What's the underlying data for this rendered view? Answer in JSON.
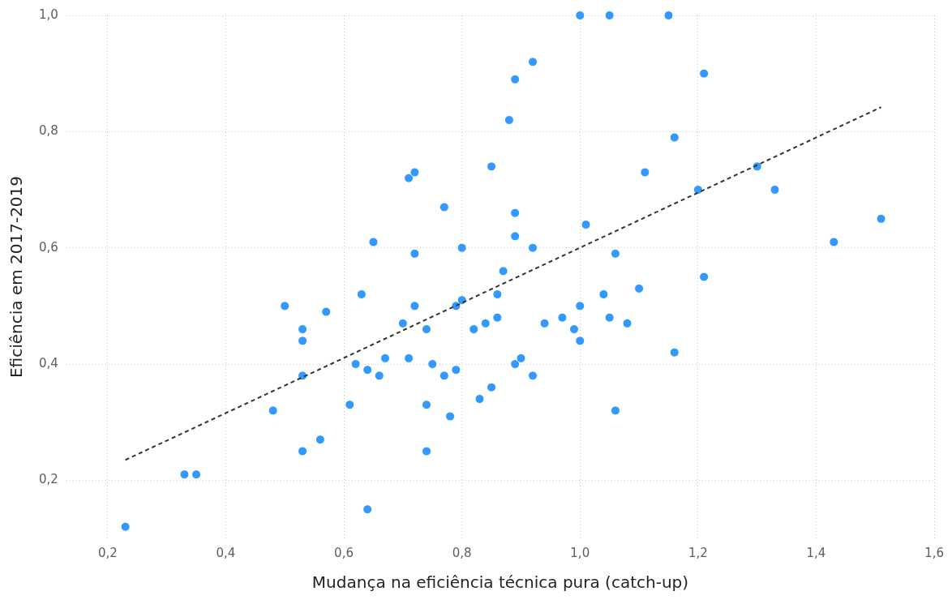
{
  "chart_data": {
    "type": "scatter",
    "xlabel": "Mudança na eficiência técnica pura (catch-up)",
    "ylabel": "Eficiência em 2017-2019",
    "xlim": [
      0.13,
      1.6
    ],
    "ylim": [
      0.1,
      1.0
    ],
    "xticks": [
      {
        "value": 0.2,
        "label": "0,2"
      },
      {
        "value": 0.4,
        "label": "0,4"
      },
      {
        "value": 0.6,
        "label": "0,6"
      },
      {
        "value": 0.8,
        "label": "0,8"
      },
      {
        "value": 1.0,
        "label": "1,0"
      },
      {
        "value": 1.2,
        "label": "1,2"
      },
      {
        "value": 1.4,
        "label": "1,4"
      },
      {
        "value": 1.6,
        "label": "1,6"
      }
    ],
    "yticks": [
      {
        "value": 0.2,
        "label": "0,2"
      },
      {
        "value": 0.4,
        "label": "0,4"
      },
      {
        "value": 0.6,
        "label": "0,6"
      },
      {
        "value": 0.8,
        "label": "0,8"
      },
      {
        "value": 1.0,
        "label": "1,0"
      }
    ],
    "grid": true,
    "legend": false,
    "marker": "circle",
    "series": [
      {
        "type": "scatter",
        "color": "#3399ff",
        "x": [
          0.23,
          0.33,
          0.35,
          0.48,
          0.5,
          0.53,
          0.53,
          0.53,
          0.53,
          0.56,
          0.57,
          0.61,
          0.62,
          0.63,
          0.65,
          0.64,
          0.64,
          0.66,
          0.67,
          0.7,
          0.71,
          0.71,
          0.72,
          0.72,
          0.72,
          0.74,
          0.74,
          0.74,
          0.75,
          0.77,
          0.77,
          0.78,
          0.79,
          0.79,
          0.8,
          0.8,
          0.82,
          0.83,
          0.84,
          0.85,
          0.85,
          0.86,
          0.86,
          0.87,
          0.88,
          0.89,
          0.89,
          0.89,
          0.89,
          0.9,
          0.92,
          0.92,
          0.92,
          0.94,
          0.97,
          0.99,
          1.0,
          1.0,
          1.0,
          1.01,
          1.04,
          1.05,
          1.05,
          1.06,
          1.06,
          1.08,
          1.1,
          1.11,
          1.15,
          1.16,
          1.16,
          1.2,
          1.21,
          1.21,
          1.3,
          1.33,
          1.43,
          1.51
        ],
        "values": [
          0.12,
          0.21,
          0.21,
          0.32,
          0.5,
          0.46,
          0.44,
          0.38,
          0.25,
          0.27,
          0.49,
          0.33,
          0.4,
          0.52,
          0.61,
          0.15,
          0.39,
          0.38,
          0.41,
          0.47,
          0.41,
          0.72,
          0.5,
          0.59,
          0.73,
          0.46,
          0.33,
          0.25,
          0.4,
          0.67,
          0.38,
          0.31,
          0.39,
          0.5,
          0.6,
          0.51,
          0.46,
          0.34,
          0.47,
          0.74,
          0.36,
          0.52,
          0.48,
          0.56,
          0.82,
          0.66,
          0.89,
          0.4,
          0.62,
          0.41,
          0.6,
          0.92,
          0.38,
          0.47,
          0.48,
          0.46,
          0.5,
          1.0,
          0.44,
          0.64,
          0.52,
          0.48,
          1.0,
          0.32,
          0.59,
          0.47,
          0.53,
          0.73,
          1.0,
          0.42,
          0.79,
          0.7,
          0.9,
          0.55,
          0.74,
          0.7,
          0.61,
          0.65
        ]
      },
      {
        "type": "line",
        "color": "#333333",
        "line_style": "dashed",
        "marker": "none",
        "x": [
          0.23,
          1.51
        ],
        "values": [
          0.235,
          0.842
        ]
      }
    ]
  }
}
